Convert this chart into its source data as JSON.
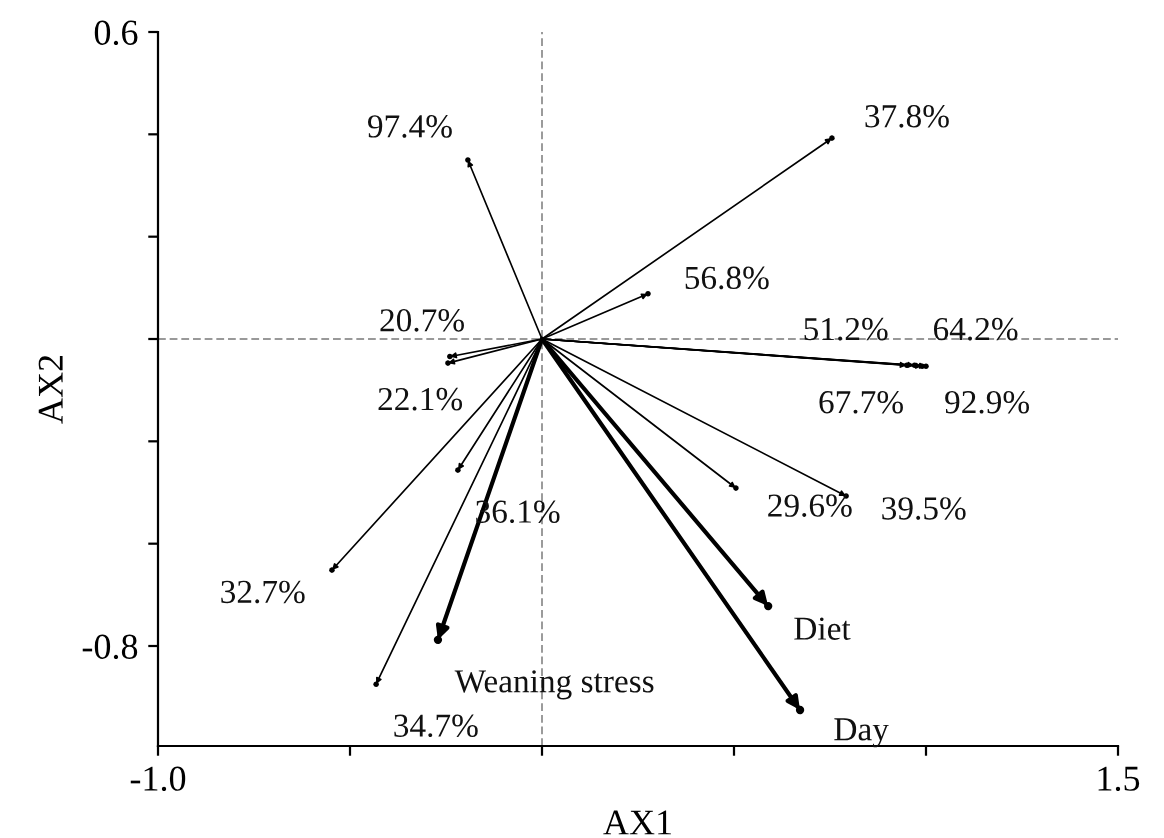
{
  "chart_data": {
    "type": "scatter",
    "xlabel": "AX1",
    "ylabel": "AX2",
    "xlim": [
      -1.0,
      1.5
    ],
    "ylim": [
      -1.028,
      0.6
    ],
    "xticks": [
      {
        "value": -1.0,
        "label": "-1.0"
      },
      {
        "value": -0.5,
        "label": null
      },
      {
        "value": 0,
        "label": null
      },
      {
        "value": 0.5,
        "label": null
      },
      {
        "value": 1.0,
        "label": null
      },
      {
        "value": 1.5,
        "label": "1.5"
      }
    ],
    "yticks": [
      {
        "value": 0.6,
        "label": "0.6"
      },
      {
        "value": 0.3667,
        "label": null
      },
      {
        "value": 0.1333,
        "label": null
      },
      {
        "value": -0.1,
        "label": null
      },
      {
        "value": -0.3333,
        "label": null
      },
      {
        "value": -0.5667,
        "label": null
      },
      {
        "value": -0.8,
        "label": "-0.8"
      }
    ],
    "ref_lines": [
      {
        "axis": "x",
        "value": 0,
        "color": "#999999",
        "line_style": "dashed"
      },
      {
        "axis": "y",
        "value": -0.1,
        "color": "#999999",
        "line_style": "dashed"
      }
    ],
    "grid": false,
    "legend": false,
    "marker": "circle",
    "series": [
      {
        "color": "#000000",
        "x": [
          -0.193,
          0.755,
          0.276,
          0.95,
          0.97,
          0.99,
          1.0,
          -0.24,
          -0.245,
          -0.219,
          -0.547,
          -0.432,
          0.505,
          0.792
        ],
        "values": [
          0.308,
          0.358,
          0.003,
          -0.16,
          -0.16,
          -0.162,
          -0.162,
          -0.14,
          -0.155,
          -0.399,
          -0.627,
          -0.887,
          -0.44,
          -0.458
        ]
      },
      {
        "color": "#000000",
        "x": [
          -0.271,
          0.589,
          0.672
        ],
        "values": [
          -0.786,
          -0.709,
          -0.946
        ]
      }
    ],
    "annotations": [
      {
        "text": "97.4%",
        "x": -0.193,
        "y": 0.308
      },
      {
        "text": "37.8%",
        "x": 0.755,
        "y": 0.358
      },
      {
        "text": "56.8%",
        "x": 0.276,
        "y": 0.003
      },
      {
        "text": "51.2%",
        "x": 0.95,
        "y": -0.16
      },
      {
        "text": "64.2%",
        "x": 0.97,
        "y": -0.16
      },
      {
        "text": "67.7%",
        "x": 0.99,
        "y": -0.162
      },
      {
        "text": "92.9%",
        "x": 1.0,
        "y": -0.162
      },
      {
        "text": "20.7%",
        "x": -0.24,
        "y": -0.14
      },
      {
        "text": "22.1%",
        "x": -0.245,
        "y": -0.155
      },
      {
        "text": "36.1%",
        "x": -0.219,
        "y": -0.399
      },
      {
        "text": "32.7%",
        "x": -0.547,
        "y": -0.627
      },
      {
        "text": "34.7%",
        "x": -0.432,
        "y": -0.887
      },
      {
        "text": "29.6%",
        "x": 0.505,
        "y": -0.44
      },
      {
        "text": "39.5%",
        "x": 0.792,
        "y": -0.458
      },
      {
        "text": "Weaning stress",
        "x": -0.271,
        "y": -0.786
      },
      {
        "text": "Diet",
        "x": 0.589,
        "y": -0.709
      },
      {
        "text": "Day",
        "x": 0.672,
        "y": -0.946
      }
    ]
  }
}
